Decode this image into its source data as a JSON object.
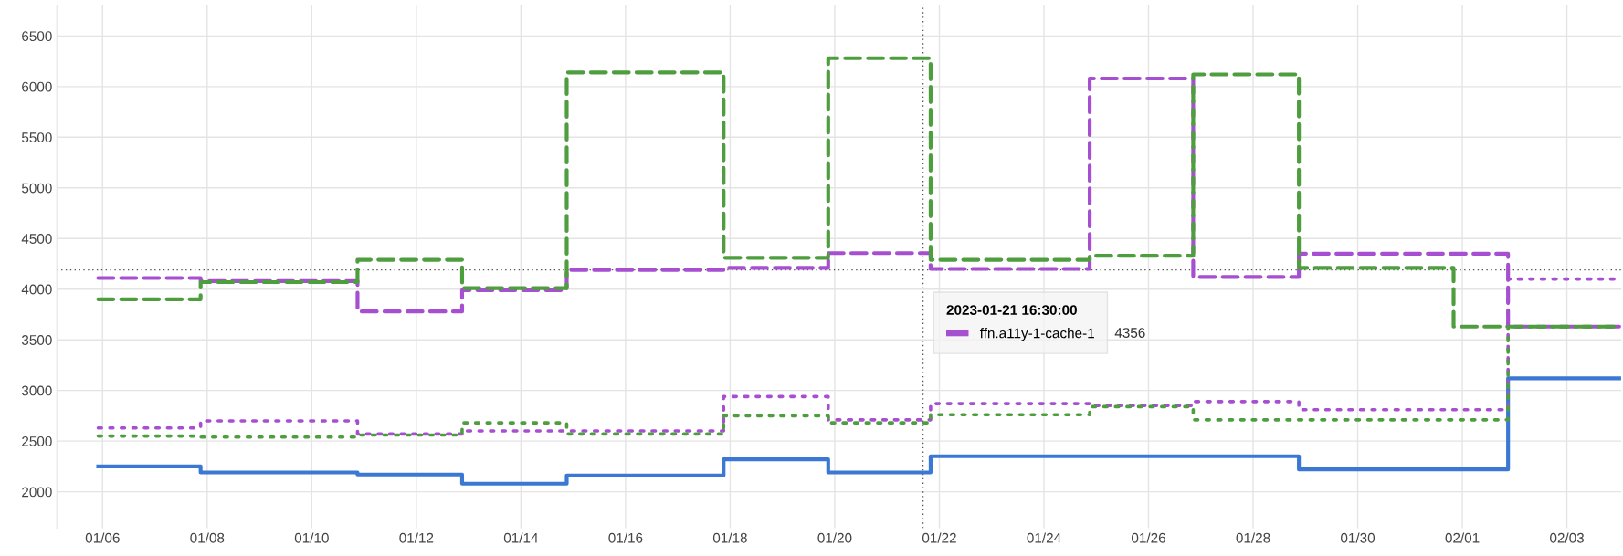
{
  "chart_data": {
    "type": "step",
    "x": [
      "2023-01-05T22:00",
      "2023-01-07T21:00",
      "2023-01-10T21:00",
      "2023-01-12T21:00",
      "2023-01-14T21:00",
      "2023-01-17T21:00",
      "2023-01-19T21:00",
      "2023-01-21T20:00",
      "2023-01-24T21:00",
      "2023-01-26T20:30",
      "2023-01-28T21:00",
      "2023-01-31T20:00",
      "2023-02-01T21:00",
      "2023-02-04T00:00"
    ],
    "series": [
      {
        "color": "#3a78d4",
        "line_style": "solid",
        "values": [
          2250,
          2190,
          2170,
          2080,
          2160,
          2320,
          2190,
          2350,
          2350,
          2350,
          2220,
          2220,
          3120,
          3120
        ]
      },
      {
        "name": "ffn.a11y-1-cache-1",
        "color": "#a64fd1",
        "line_style": "dashed",
        "values": [
          4110,
          4080,
          3780,
          3990,
          4190,
          4210,
          4356,
          4200,
          6080,
          4120,
          4350,
          4350,
          3630,
          3630
        ]
      },
      {
        "color": "#4e9e3f",
        "line_style": "dashed",
        "values": [
          3900,
          4070,
          4290,
          4010,
          6140,
          4310,
          6280,
          4290,
          4330,
          6120,
          4210,
          3630,
          3630,
          3630
        ]
      },
      {
        "color": "#a64fd1",
        "line_style": "dotted",
        "values": [
          2630,
          2700,
          2570,
          2600,
          2600,
          2940,
          2710,
          2870,
          2850,
          2890,
          2810,
          2810,
          4100,
          4100
        ]
      },
      {
        "color": "#4e9e3f",
        "line_style": "dotted",
        "values": [
          2550,
          2540,
          2560,
          2680,
          2570,
          2750,
          2680,
          2760,
          2840,
          2710,
          2710,
          2710,
          3630,
          3630
        ]
      }
    ],
    "xlim": [
      "2023-01-05T03:00",
      "2023-02-04T01:00"
    ],
    "xticks": [
      {
        "value": "2023-01-06",
        "label": "01/06"
      },
      {
        "value": "2023-01-08",
        "label": "01/08"
      },
      {
        "value": "2023-01-10",
        "label": "01/10"
      },
      {
        "value": "2023-01-12",
        "label": "01/12"
      },
      {
        "value": "2023-01-14",
        "label": "01/14"
      },
      {
        "value": "2023-01-16",
        "label": "01/16"
      },
      {
        "value": "2023-01-18",
        "label": "01/18"
      },
      {
        "value": "2023-01-20",
        "label": "01/20"
      },
      {
        "value": "2023-01-22",
        "label": "01/22"
      },
      {
        "value": "2023-01-24",
        "label": "01/24"
      },
      {
        "value": "2023-01-26",
        "label": "01/26"
      },
      {
        "value": "2023-01-28",
        "label": "01/28"
      },
      {
        "value": "2023-01-30",
        "label": "01/30"
      },
      {
        "value": "2023-02-01",
        "label": "02/01"
      },
      {
        "value": "2023-02-03",
        "label": "02/03"
      }
    ],
    "ylim": [
      1640,
      6800
    ],
    "yticks": [
      2000,
      2500,
      3000,
      3500,
      4000,
      4500,
      5000,
      5500,
      6000,
      6500
    ],
    "grid": true,
    "legend": "center",
    "legend_title": "2023-01-21 16:30:00",
    "ref_lines": [
      {
        "axis": "x",
        "value": "2023-01-21T16:30",
        "color": "#555555",
        "line_style": "dotted"
      },
      {
        "axis": "y",
        "value": 4190,
        "color": "#555555",
        "line_style": "dotted"
      }
    ],
    "annotations": [
      "4356"
    ]
  }
}
